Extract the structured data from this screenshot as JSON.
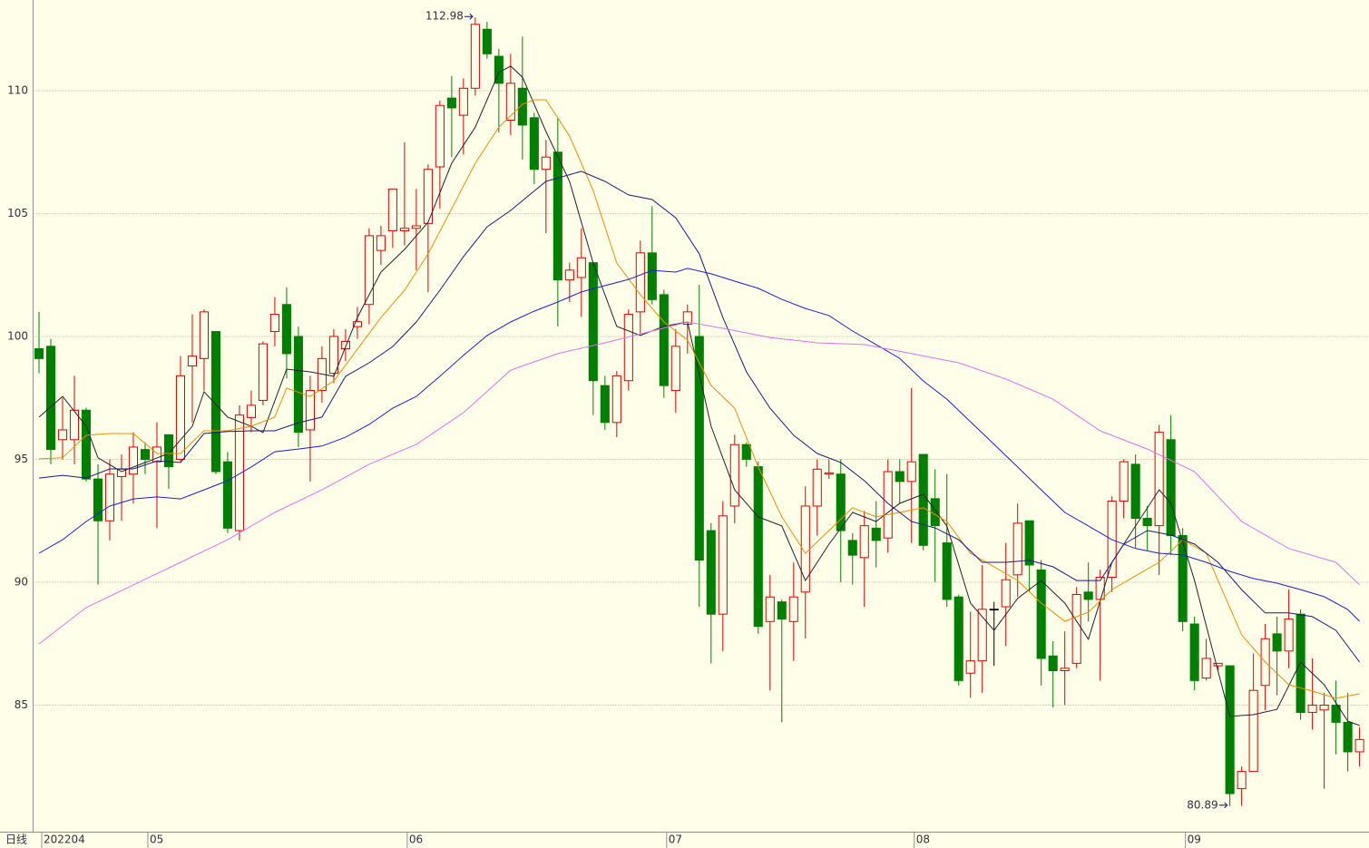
{
  "chart_data": {
    "type": "candlestick",
    "title": "日线",
    "open": [
      99.5,
      99.6,
      95.8,
      95.8,
      97.0,
      94.2,
      92.5,
      94.3,
      94.4,
      95.4,
      94.9,
      96.0,
      95.0,
      98.8,
      99.1,
      100.2,
      94.9,
      92.1,
      96.7,
      97.4,
      100.2,
      101.3,
      100.0,
      96.2,
      97.8,
      98.5,
      99.5,
      100.4,
      101.3,
      103.5,
      104.3,
      104.3,
      104.4,
      104.6,
      106.9,
      109.7,
      109.0,
      110.1,
      112.5,
      111.4,
      108.8,
      110.1,
      108.9,
      106.8,
      107.5,
      102.3,
      102.4,
      103.0,
      98.0,
      96.5,
      98.2,
      101.0,
      103.4,
      101.7,
      97.8,
      100.5,
      100.0,
      92.1,
      88.7,
      93.1,
      95.6,
      94.7,
      88.4,
      89.2,
      88.4,
      89.6,
      93.1,
      94.4,
      94.4,
      91.7,
      91.0,
      92.2,
      91.8,
      94.5,
      94.1,
      95.2,
      93.4,
      91.6,
      89.4,
      86.3,
      86.8,
      88.9,
      89.0,
      90.3,
      92.5,
      90.5,
      87.0,
      86.4,
      86.7,
      89.6,
      89.3,
      90.2,
      93.3,
      94.8,
      92.6,
      92.3,
      95.8,
      91.9,
      88.3,
      86.1,
      86.6,
      86.6,
      81.6,
      82.3,
      85.8,
      87.9,
      87.2,
      88.7,
      84.7,
      84.8,
      85.0,
      84.3,
      83.1
    ],
    "high": [
      101.0,
      99.9,
      97.5,
      98.4,
      97.1,
      94.8,
      95.0,
      95.2,
      96.1,
      95.7,
      96.5,
      96.0,
      99.2,
      100.9,
      101.1,
      100.2,
      95.3,
      97.2,
      97.8,
      99.8,
      101.6,
      102.0,
      100.4,
      98.4,
      99.6,
      100.3,
      100.3,
      101.2,
      104.4,
      104.5,
      106.0,
      107.9,
      106.0,
      107.0,
      109.6,
      110.6,
      110.5,
      112.98,
      112.8,
      111.7,
      111.5,
      112.2,
      109.1,
      108.0,
      108.9,
      103.0,
      104.4,
      103.0,
      98.4,
      98.6,
      101.1,
      103.9,
      105.3,
      101.9,
      100.3,
      101.3,
      102.1,
      92.4,
      93.3,
      96.0,
      95.7,
      94.9,
      90.3,
      89.3,
      90.8,
      93.9,
      95.0,
      95.0,
      95.0,
      92.0,
      92.9,
      93.3,
      95.0,
      95.0,
      97.9,
      95.2,
      94.6,
      94.4,
      89.5,
      88.8,
      90.7,
      89.2,
      91.6,
      93.2,
      92.5,
      90.9,
      87.6,
      88.0,
      89.8,
      90.8,
      90.5,
      93.5,
      95.0,
      95.2,
      93.1,
      96.4,
      96.8,
      92.2,
      88.6,
      87.7,
      86.7,
      86.6,
      82.5,
      87.1,
      88.3,
      88.6,
      89.7,
      88.9,
      86.9,
      85.5,
      86.0,
      85.5,
      84.1
    ],
    "low": [
      98.5,
      94.8,
      95.0,
      94.8,
      94.1,
      89.9,
      91.7,
      92.5,
      93.2,
      94.4,
      92.2,
      93.8,
      94.9,
      96.5,
      97.8,
      94.4,
      92.0,
      91.7,
      96.1,
      97.2,
      99.6,
      98.3,
      95.5,
      94.1,
      97.3,
      98.1,
      99.0,
      99.9,
      100.5,
      102.9,
      103.6,
      103.7,
      102.7,
      101.8,
      105.2,
      107.3,
      107.4,
      109.8,
      111.3,
      108.3,
      108.2,
      107.2,
      106.2,
      104.2,
      100.4,
      101.4,
      100.8,
      96.8,
      96.2,
      95.9,
      97.8,
      100.1,
      101.3,
      97.5,
      96.9,
      99.3,
      89.0,
      86.7,
      87.2,
      92.4,
      94.7,
      87.9,
      85.6,
      84.3,
      86.8,
      87.7,
      91.9,
      94.2,
      90.0,
      89.9,
      89.0,
      90.6,
      91.2,
      93.2,
      91.6,
      91.3,
      90.0,
      89.0,
      85.8,
      85.3,
      85.5,
      86.6,
      87.4,
      89.4,
      89.6,
      85.8,
      84.9,
      85.0,
      86.5,
      88.4,
      86.0,
      89.6,
      92.6,
      91.4,
      91.3,
      90.3,
      91.1,
      88.0,
      85.6,
      86.0,
      86.4,
      80.89,
      80.9,
      82.3,
      84.8,
      85.4,
      86.5,
      84.4,
      84.0,
      81.6,
      83.0,
      82.3,
      82.5
    ],
    "close": [
      99.1,
      95.4,
      96.2,
      97.0,
      94.2,
      92.5,
      94.4,
      94.6,
      95.5,
      95.0,
      95.5,
      94.7,
      98.4,
      99.2,
      101.0,
      94.5,
      92.2,
      96.8,
      97.2,
      99.7,
      100.9,
      99.3,
      96.1,
      97.8,
      99.1,
      100.0,
      99.8,
      100.6,
      104.1,
      104.1,
      106.0,
      104.4,
      104.5,
      106.8,
      109.4,
      109.3,
      110.1,
      112.7,
      111.5,
      110.3,
      110.3,
      108.6,
      106.8,
      107.3,
      102.3,
      102.7,
      103.2,
      98.2,
      96.5,
      98.4,
      100.9,
      103.4,
      101.5,
      98.0,
      99.6,
      101.0,
      90.9,
      88.7,
      92.7,
      95.6,
      95.0,
      88.2,
      89.4,
      88.5,
      89.4,
      93.1,
      94.6,
      94.45,
      92.1,
      91.1,
      92.3,
      91.7,
      94.5,
      94.1,
      94.9,
      91.5,
      92.3,
      89.3,
      86.0,
      86.8,
      88.9,
      88.9,
      90.1,
      92.4,
      90.7,
      86.9,
      86.4,
      86.5,
      89.5,
      89.3,
      90.2,
      93.3,
      94.9,
      92.6,
      92.3,
      96.1,
      91.9,
      88.4,
      86.0,
      86.9,
      86.7,
      81.4,
      82.3,
      85.6,
      87.7,
      87.2,
      88.5,
      84.7,
      85.0,
      85.0,
      84.3,
      83.1,
      83.6
    ],
    "up_color": "#e00000",
    "down_color": "#008000",
    "flat_color": "#000000",
    "series": [
      {
        "color": "#202030",
        "x": [
          0,
          2,
          4,
          5,
          7,
          9,
          11,
          13,
          14,
          16,
          18,
          19,
          21,
          23,
          25,
          27,
          29,
          31,
          33,
          35,
          37,
          39,
          40,
          41,
          43,
          45,
          47,
          49,
          51,
          53,
          55,
          57,
          59,
          61,
          63,
          65,
          67,
          69,
          71,
          73,
          75,
          77,
          79,
          81,
          83,
          85,
          87,
          89,
          91,
          93,
          95,
          96,
          98,
          100,
          101,
          103,
          105,
          107,
          109,
          111,
          112
        ],
        "values": [
          96.72,
          97.56,
          96.35,
          95.06,
          94.5,
          94.87,
          95.24,
          96.35,
          97.75,
          96.72,
          96.35,
          96.09,
          98.67,
          98.56,
          98.38,
          100.77,
          102.62,
          103.54,
          104.65,
          107.05,
          108.52,
          110.74,
          111.0,
          110.55,
          108.34,
          106.31,
          102.99,
          100.41,
          100.04,
          100.41,
          100.59,
          96.35,
          93.76,
          92.66,
          92.29,
          90.07,
          91.55,
          92.84,
          92.47,
          93.21,
          93.58,
          92.29,
          89.15,
          88.04,
          89.34,
          90.07,
          89.15,
          87.68,
          90.81,
          92.29,
          93.76,
          93.21,
          90.07,
          86.38,
          84.54,
          84.61,
          84.83,
          86.75,
          85.83,
          84.35,
          84.17
        ]
      },
      {
        "color": "#f08c00",
        "x": [
          0,
          2,
          4,
          6,
          8,
          10,
          12,
          14,
          16,
          18,
          20,
          21,
          23,
          25,
          27,
          29,
          31,
          33,
          35,
          37,
          39,
          41,
          42,
          43,
          45,
          47,
          49,
          51,
          53,
          55,
          57,
          59,
          61,
          63,
          65,
          67,
          69,
          71,
          73,
          75,
          77,
          79,
          81,
          83,
          85,
          87,
          89,
          91,
          93,
          95,
          97,
          99,
          100,
          102,
          104,
          106,
          108,
          110,
          112
        ],
        "values": [
          95.02,
          95.06,
          95.98,
          96.05,
          96.05,
          95.24,
          95.24,
          96.16,
          96.16,
          96.35,
          96.72,
          97.9,
          97.56,
          98.19,
          99.48,
          100.77,
          101.88,
          103.36,
          105.2,
          107.05,
          108.52,
          109.45,
          109.63,
          109.63,
          108.15,
          105.94,
          102.99,
          101.7,
          100.59,
          99.85,
          98.01,
          97.08,
          94.69,
          92.66,
          91.18,
          92.1,
          93.03,
          92.66,
          92.84,
          93.03,
          92.47,
          91.18,
          90.63,
          90.07,
          89.15,
          88.41,
          88.78,
          89.7,
          90.26,
          90.81,
          91.73,
          91.18,
          90.07,
          87.86,
          86.75,
          85.83,
          85.57,
          85.28,
          85.46
        ]
      },
      {
        "color": "#1a1a80",
        "x": [
          0,
          2,
          4,
          6,
          8,
          10,
          12,
          14,
          16,
          18,
          20,
          22,
          24,
          26,
          28,
          30,
          32,
          34,
          36,
          38,
          40,
          43,
          46,
          48,
          50,
          52,
          54,
          56,
          58,
          60,
          62,
          64,
          66,
          68,
          70,
          72,
          74,
          76,
          78,
          80,
          82,
          84,
          86,
          88,
          90,
          92,
          94,
          96,
          98,
          100,
          102,
          104,
          106,
          108,
          110,
          112
        ],
        "values": [
          94.24,
          94.35,
          94.24,
          94.61,
          94.61,
          94.94,
          94.87,
          96.05,
          96.13,
          96.16,
          96.16,
          96.49,
          96.72,
          98.38,
          98.93,
          99.59,
          100.59,
          101.88,
          103.25,
          104.46,
          105.13,
          106.31,
          106.72,
          106.31,
          105.76,
          105.57,
          104.83,
          103.36,
          100.77,
          98.56,
          97.08,
          95.98,
          95.24,
          94.87,
          94.13,
          93.21,
          92.47,
          92.21,
          91.73,
          90.81,
          90.81,
          90.89,
          90.63,
          90.07,
          90.07,
          91.55,
          92.1,
          91.92,
          91.55,
          90.81,
          89.7,
          88.75,
          88.75,
          88.6,
          88.04,
          86.75
        ]
      },
      {
        "color": "#1c1ce0",
        "x": [
          0,
          2,
          4,
          6,
          8,
          10,
          12,
          14,
          16,
          18,
          20,
          22,
          24,
          26,
          28,
          30,
          32,
          34,
          36,
          38,
          40,
          42,
          44,
          46,
          48,
          50,
          52,
          54,
          55,
          57,
          59,
          61,
          63,
          65,
          67,
          69,
          71,
          73,
          75,
          77,
          79,
          81,
          83,
          85,
          87,
          89,
          91,
          93,
          95,
          97,
          99,
          101,
          103,
          105,
          107,
          109,
          111,
          112
        ],
        "values": [
          91.18,
          91.73,
          92.47,
          93.1,
          93.39,
          93.47,
          93.39,
          93.76,
          94.13,
          94.69,
          95.31,
          95.42,
          95.54,
          95.9,
          96.42,
          97.08,
          97.56,
          98.38,
          99.23,
          100.04,
          100.59,
          101.03,
          101.4,
          101.81,
          102.07,
          102.32,
          102.69,
          102.62,
          102.77,
          102.55,
          102.25,
          101.96,
          101.51,
          101.14,
          100.85,
          100.22,
          99.67,
          99.11,
          98.19,
          97.45,
          96.53,
          95.61,
          94.69,
          93.76,
          92.84,
          92.29,
          91.73,
          91.37,
          91.18,
          91.11,
          90.81,
          90.44,
          90.15,
          89.96,
          89.7,
          89.41,
          88.89,
          88.41
        ]
      },
      {
        "color": "#e070f0",
        "x": [
          0,
          4,
          8,
          12,
          16,
          20,
          24,
          28,
          32,
          36,
          40,
          44,
          48,
          52,
          55,
          58,
          62,
          66,
          70,
          74,
          78,
          82,
          86,
          90,
          94,
          98,
          102,
          106,
          110,
          112
        ],
        "values": [
          87.49,
          88.97,
          89.89,
          90.81,
          91.73,
          92.84,
          93.76,
          94.8,
          95.61,
          96.9,
          98.63,
          99.3,
          99.74,
          100.22,
          100.59,
          100.33,
          99.96,
          99.74,
          99.67,
          99.3,
          98.93,
          98.27,
          97.45,
          96.16,
          95.42,
          94.5,
          92.47,
          91.37,
          90.81,
          89.89
        ]
      }
    ],
    "annotations": [
      {
        "label": "112.98",
        "value": 112.98
      },
      {
        "label": "80.89",
        "value": 80.89
      }
    ],
    "xlim": [
      -0.5,
      112.8
    ],
    "xticks": [
      {
        "value": 0,
        "label": "202204"
      },
      {
        "value": 9,
        "label": "05"
      },
      {
        "value": 31,
        "label": "06"
      },
      {
        "value": 53,
        "label": "07"
      },
      {
        "value": 74,
        "label": "08"
      },
      {
        "value": 97,
        "label": "09"
      }
    ],
    "ylim": [
      79.85,
      113.69
    ],
    "yticks": [
      85,
      90,
      95,
      100,
      105,
      110
    ],
    "grid": true
  }
}
